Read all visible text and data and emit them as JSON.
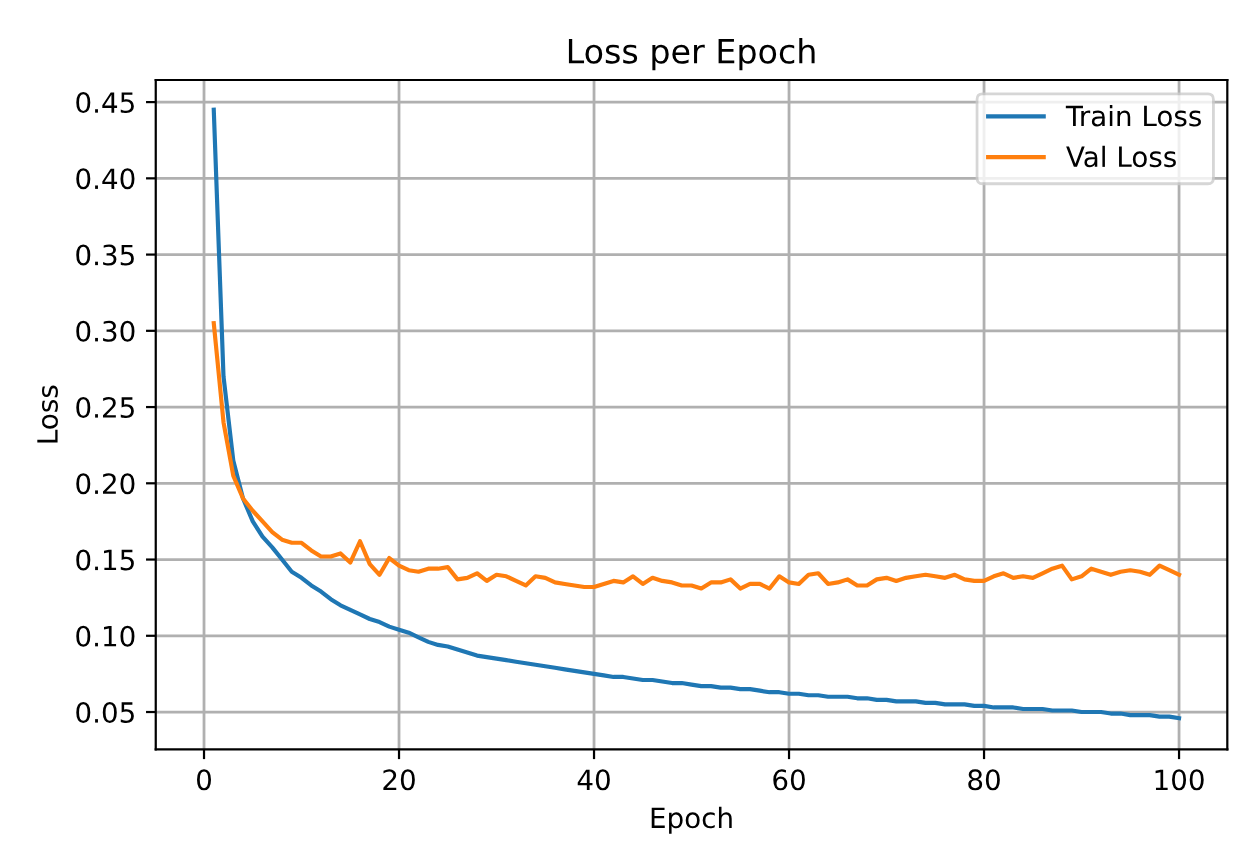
{
  "chart_data": {
    "type": "line",
    "title": "Loss per Epoch",
    "xlabel": "Epoch",
    "ylabel": "Loss",
    "x": [
      1,
      2,
      3,
      4,
      5,
      6,
      7,
      8,
      9,
      10,
      11,
      12,
      13,
      14,
      15,
      16,
      17,
      18,
      19,
      20,
      21,
      22,
      23,
      24,
      25,
      26,
      27,
      28,
      29,
      30,
      31,
      32,
      33,
      34,
      35,
      36,
      37,
      38,
      39,
      40,
      41,
      42,
      43,
      44,
      45,
      46,
      47,
      48,
      49,
      50,
      51,
      52,
      53,
      54,
      55,
      56,
      57,
      58,
      59,
      60,
      61,
      62,
      63,
      64,
      65,
      66,
      67,
      68,
      69,
      70,
      71,
      72,
      73,
      74,
      75,
      76,
      77,
      78,
      79,
      80,
      81,
      82,
      83,
      84,
      85,
      86,
      87,
      88,
      89,
      90,
      91,
      92,
      93,
      94,
      95,
      96,
      97,
      98,
      99,
      100
    ],
    "series": [
      {
        "name": "Train Loss",
        "color": "#1f77b4",
        "values": [
          0.445,
          0.27,
          0.215,
          0.19,
          0.175,
          0.165,
          0.158,
          0.15,
          0.142,
          0.138,
          0.133,
          0.129,
          0.124,
          0.12,
          0.117,
          0.114,
          0.111,
          0.109,
          0.106,
          0.104,
          0.102,
          0.099,
          0.096,
          0.094,
          0.093,
          0.091,
          0.089,
          0.087,
          0.086,
          0.085,
          0.084,
          0.083,
          0.082,
          0.081,
          0.08,
          0.079,
          0.078,
          0.077,
          0.076,
          0.075,
          0.074,
          0.073,
          0.073,
          0.072,
          0.071,
          0.071,
          0.07,
          0.069,
          0.069,
          0.068,
          0.067,
          0.067,
          0.066,
          0.066,
          0.065,
          0.065,
          0.064,
          0.063,
          0.063,
          0.062,
          0.062,
          0.061,
          0.061,
          0.06,
          0.06,
          0.06,
          0.059,
          0.059,
          0.058,
          0.058,
          0.057,
          0.057,
          0.057,
          0.056,
          0.056,
          0.055,
          0.055,
          0.055,
          0.054,
          0.054,
          0.053,
          0.053,
          0.053,
          0.052,
          0.052,
          0.052,
          0.051,
          0.051,
          0.051,
          0.05,
          0.05,
          0.05,
          0.049,
          0.049,
          0.048,
          0.048,
          0.048,
          0.047,
          0.047,
          0.046
        ]
      },
      {
        "name": "Val Loss",
        "color": "#ff7f0e",
        "values": [
          0.305,
          0.24,
          0.205,
          0.19,
          0.182,
          0.175,
          0.168,
          0.163,
          0.161,
          0.161,
          0.156,
          0.152,
          0.152,
          0.154,
          0.148,
          0.162,
          0.147,
          0.14,
          0.151,
          0.146,
          0.143,
          0.142,
          0.144,
          0.144,
          0.145,
          0.137,
          0.138,
          0.141,
          0.136,
          0.14,
          0.139,
          0.136,
          0.133,
          0.139,
          0.138,
          0.135,
          0.134,
          0.133,
          0.132,
          0.132,
          0.134,
          0.136,
          0.135,
          0.139,
          0.134,
          0.138,
          0.136,
          0.135,
          0.133,
          0.133,
          0.131,
          0.135,
          0.135,
          0.137,
          0.131,
          0.134,
          0.134,
          0.131,
          0.139,
          0.135,
          0.134,
          0.14,
          0.141,
          0.134,
          0.135,
          0.137,
          0.133,
          0.133,
          0.137,
          0.138,
          0.136,
          0.138,
          0.139,
          0.14,
          0.139,
          0.138,
          0.14,
          0.137,
          0.136,
          0.136,
          0.139,
          0.141,
          0.138,
          0.139,
          0.138,
          0.141,
          0.144,
          0.146,
          0.137,
          0.139,
          0.144,
          0.142,
          0.14,
          0.142,
          0.143,
          0.142,
          0.14,
          0.146,
          0.143,
          0.14
        ]
      }
    ],
    "xlim": [
      -4.95,
      104.95
    ],
    "xticks": [
      0,
      20,
      40,
      60,
      80,
      100
    ],
    "ylim": [
      0.0255,
      0.4645
    ],
    "yticks": [
      {
        "value": 0.05,
        "label": "0.05"
      },
      {
        "value": 0.1,
        "label": "0.10"
      },
      {
        "value": 0.15,
        "label": "0.15"
      },
      {
        "value": 0.2,
        "label": "0.20"
      },
      {
        "value": 0.25,
        "label": "0.25"
      },
      {
        "value": 0.3,
        "label": "0.30"
      },
      {
        "value": 0.35,
        "label": "0.35"
      },
      {
        "value": 0.4,
        "label": "0.40"
      },
      {
        "value": 0.45,
        "label": "0.45"
      }
    ],
    "grid": true,
    "legend": "top right"
  }
}
